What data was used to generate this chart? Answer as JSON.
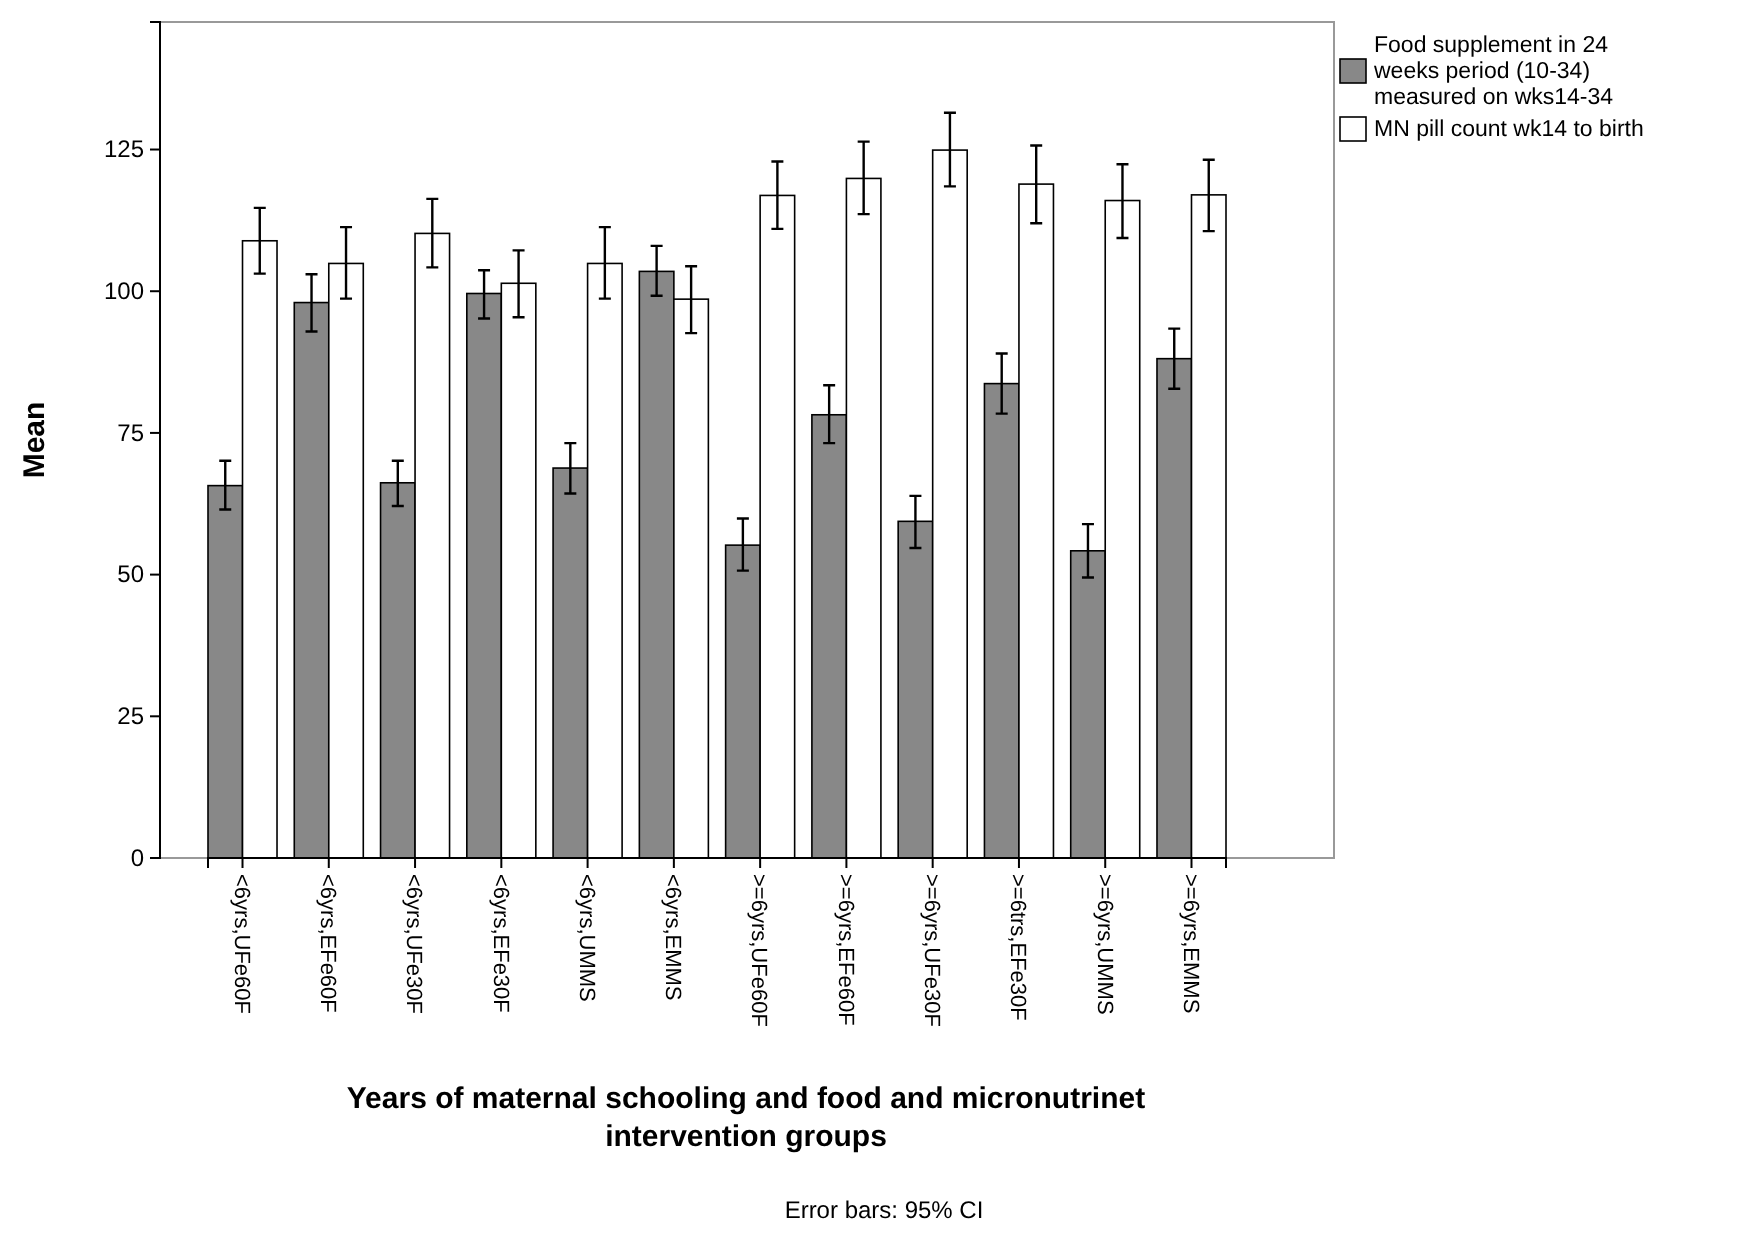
{
  "chart_data": {
    "type": "bar",
    "xlabel": "Years of maternal schooling and food and micronutrinet intervention groups",
    "ylabel": "Mean",
    "categories": [
      "<6yrs,UFe60F",
      "<6yrs,EFe60F",
      "<6yrs,UFe30F",
      "<6yrs,EFe30F",
      "<6yrs,UMMS",
      "<6yrs,EMMS",
      ">=6yrs,UFe60F",
      ">=6yrs,EFe60F",
      ">=6yrs,UFe30F",
      ">=6trs,EFe30F",
      ">=6yrs,UMMS",
      ">=6yrs,EMMS"
    ],
    "series": [
      {
        "name": "Food supplement in 24 weeks period (10-34) measured on wks14-34",
        "color": "#888888",
        "values": [
          65.7,
          98.0,
          66.2,
          99.6,
          68.8,
          103.5,
          55.2,
          78.2,
          59.4,
          83.7,
          54.2,
          88.1
        ],
        "errors": [
          [
            61.5,
            70.1
          ],
          [
            92.9,
            103.0
          ],
          [
            62.1,
            70.1
          ],
          [
            95.2,
            103.7
          ],
          [
            64.3,
            73.2
          ],
          [
            99.2,
            108.0
          ],
          [
            50.7,
            59.9
          ],
          [
            73.2,
            83.4
          ],
          [
            54.7,
            63.9
          ],
          [
            78.4,
            89.0
          ],
          [
            49.5,
            58.9
          ],
          [
            82.8,
            93.4
          ]
        ]
      },
      {
        "name": "MN pill count wk14 to birth",
        "color": "#ffffff",
        "values": [
          108.9,
          104.9,
          110.2,
          101.4,
          104.9,
          98.6,
          116.9,
          119.9,
          124.9,
          118.9,
          116.0,
          117.0
        ],
        "errors": [
          [
            103.1,
            114.7
          ],
          [
            98.7,
            111.3
          ],
          [
            104.2,
            116.3
          ],
          [
            95.4,
            107.2
          ],
          [
            98.7,
            111.3
          ],
          [
            92.6,
            104.4
          ],
          [
            111.0,
            122.9
          ],
          [
            113.6,
            126.4
          ],
          [
            118.5,
            131.5
          ],
          [
            112.0,
            125.7
          ],
          [
            109.4,
            122.4
          ],
          [
            110.6,
            123.2
          ]
        ]
      }
    ],
    "ylim": [
      0,
      147.5
    ],
    "yticks": [
      0,
      25,
      50,
      75,
      100,
      125
    ],
    "legend": "top right",
    "annotations": [
      "Error bars: 95% CI"
    ]
  }
}
